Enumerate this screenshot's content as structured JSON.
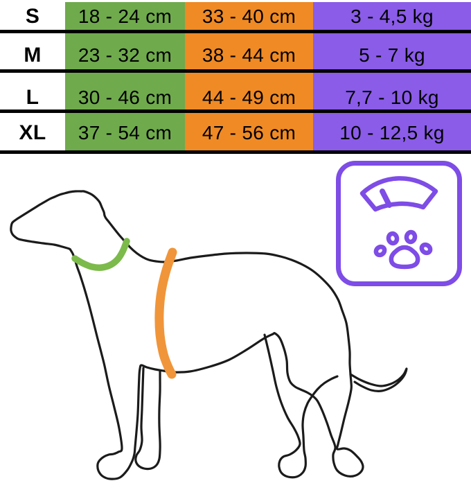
{
  "chart_data": {
    "type": "table",
    "rows": [
      [
        "S",
        "18 - 24 cm",
        "33 - 40 cm",
        "3 - 4,5 kg"
      ],
      [
        "M",
        "23 - 32 cm",
        "38 - 44 cm",
        "5 - 7 kg"
      ],
      [
        "L",
        "30 - 46 cm",
        "44 - 49 cm",
        "7,7 - 10 kg"
      ],
      [
        "XL",
        "37 - 54 cm",
        "47 - 56 cm",
        "10 - 12,5 kg"
      ]
    ]
  },
  "colors": {
    "neck_column_green": "#6faa4d",
    "chest_column_orange": "#ef8a25",
    "weight_column_purple": "#8a5ce8",
    "row_divider_black": "#000000",
    "collar_green": "#7cba4b",
    "harness_orange": "#f0953a",
    "badge_purple": "#7e4ce6",
    "dog_outline": "#1b1b1b"
  },
  "icons": {
    "scale_gauge": "scale-gauge-icon",
    "paw": "paw-icon"
  }
}
